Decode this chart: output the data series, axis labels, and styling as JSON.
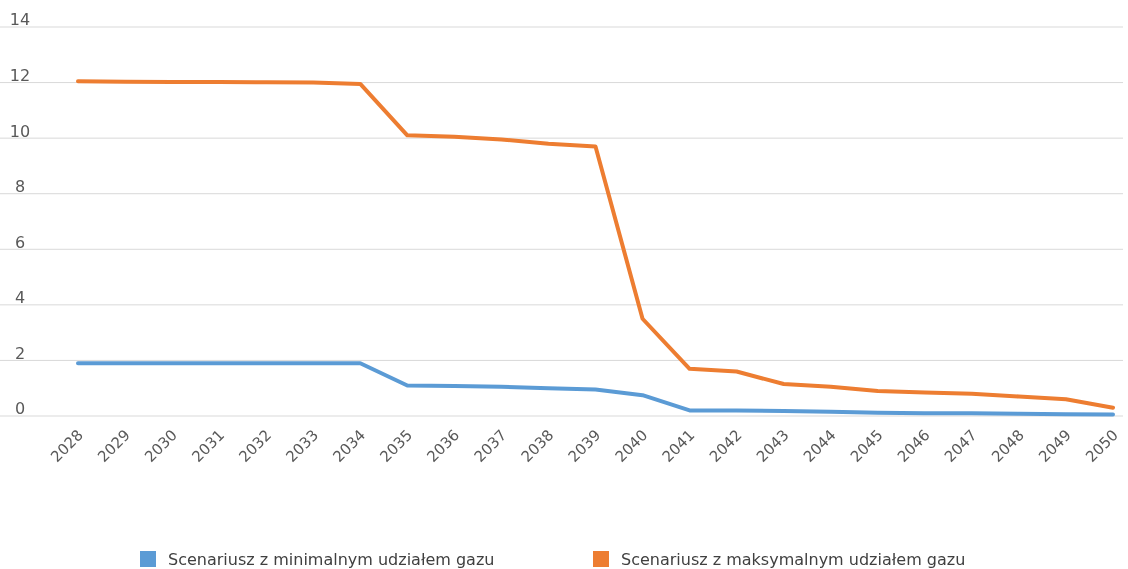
{
  "chart_data": {
    "type": "line",
    "categories": [
      "2028",
      "2029",
      "2030",
      "2031",
      "2032",
      "2033",
      "2034",
      "2035",
      "2036",
      "2037",
      "2038",
      "2039",
      "2040",
      "2041",
      "2042",
      "2043",
      "2044",
      "2045",
      "2046",
      "2047",
      "2048",
      "2049",
      "2050"
    ],
    "series": [
      {
        "name": "Scenariusz z minimalnym udziałem gazu",
        "color": "#5b9bd5",
        "values": [
          1.9,
          1.9,
          1.9,
          1.9,
          1.9,
          1.9,
          1.9,
          1.1,
          1.08,
          1.05,
          1.0,
          0.95,
          0.75,
          0.2,
          0.2,
          0.18,
          0.15,
          0.12,
          0.1,
          0.1,
          0.08,
          0.06,
          0.05
        ]
      },
      {
        "name": "Scenariusz z maksymalnym udziałem gazu",
        "color": "#ed7d31",
        "values": [
          12.05,
          12.03,
          12.02,
          12.02,
          12.01,
          12.0,
          11.95,
          10.1,
          10.05,
          9.95,
          9.8,
          9.7,
          3.5,
          1.7,
          1.6,
          1.15,
          1.05,
          0.9,
          0.85,
          0.8,
          0.7,
          0.6,
          0.3
        ]
      }
    ],
    "ylim": [
      0,
      14
    ],
    "yticks": [
      0,
      2,
      4,
      6,
      8,
      10,
      12,
      14
    ],
    "grid": "y",
    "legend": "bottom",
    "marker": "none",
    "line_style": "solid"
  }
}
